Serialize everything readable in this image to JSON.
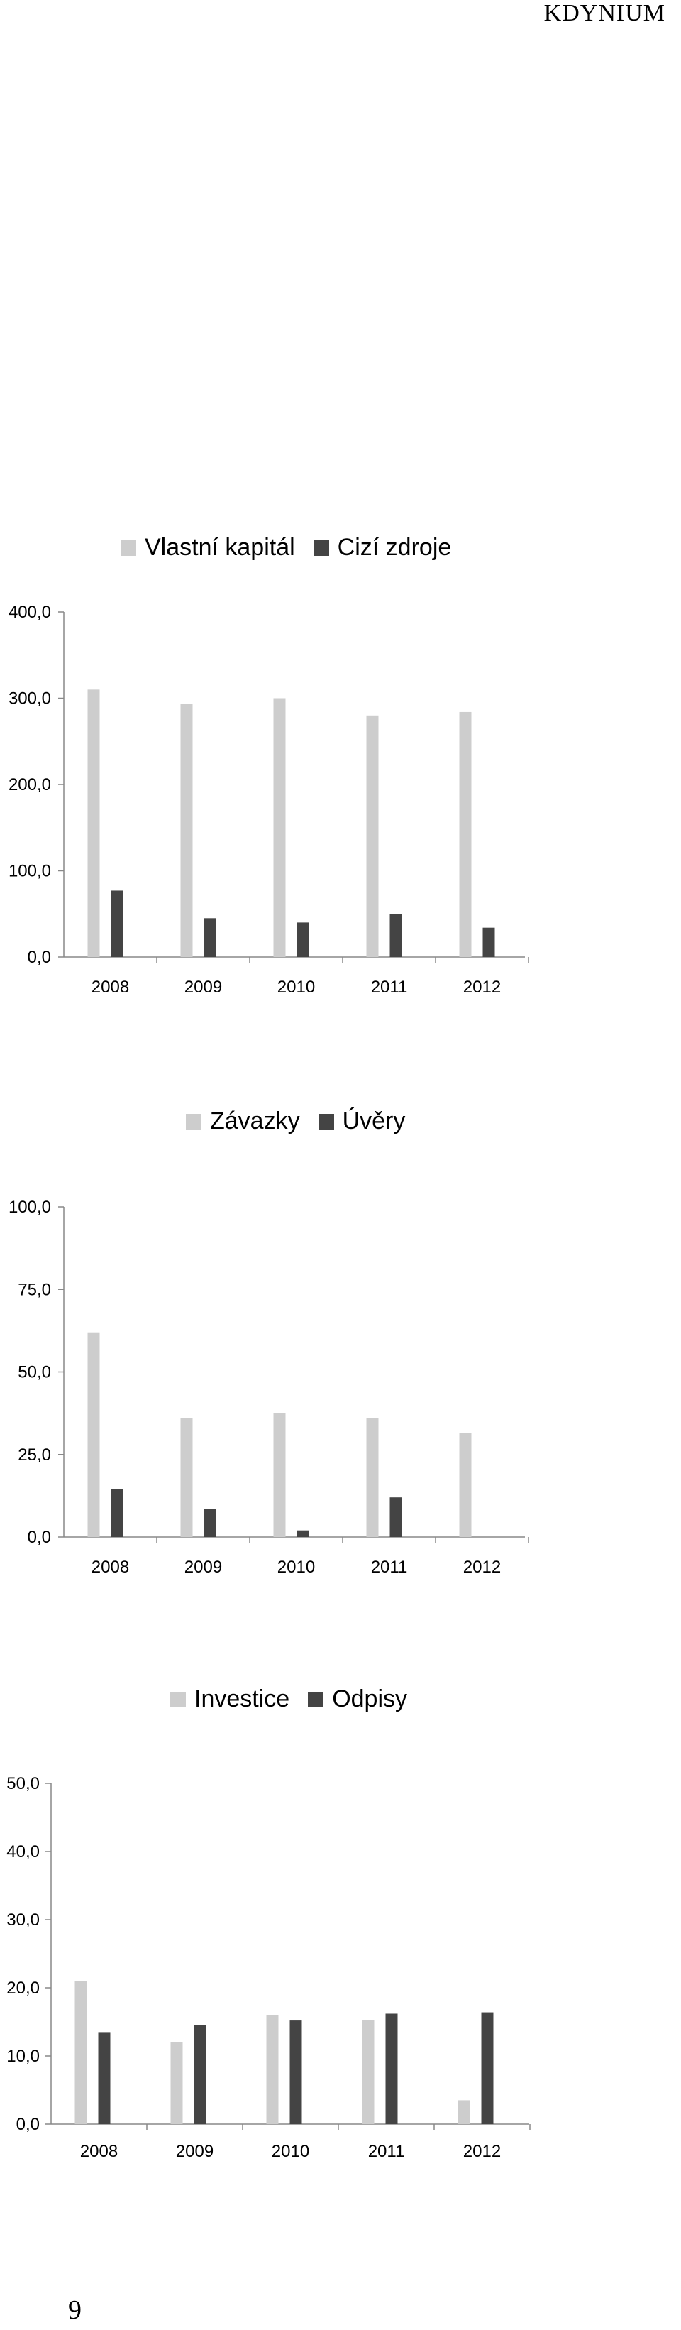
{
  "header": {
    "brand": "KDYNIUM"
  },
  "page_number": "9",
  "colors": {
    "light": "#cdcdcd",
    "dark": "#444444",
    "axis": "#888888"
  },
  "chart_data": [
    {
      "type": "bar",
      "categories": [
        "2008",
        "2009",
        "2010",
        "2011",
        "2012"
      ],
      "series": [
        {
          "name": "Vlastní kapitál",
          "values": [
            310,
            293,
            300,
            280,
            284
          ]
        },
        {
          "name": "Cizí zdroje",
          "values": [
            77,
            45,
            40,
            50,
            34
          ]
        }
      ],
      "ylim": [
        0,
        400
      ],
      "yticks": [
        "0,0",
        "100,0",
        "200,0",
        "300,0",
        "400,0"
      ],
      "legend": "top"
    },
    {
      "type": "bar",
      "categories": [
        "2008",
        "2009",
        "2010",
        "2011",
        "2012"
      ],
      "series": [
        {
          "name": "Závazky",
          "values": [
            62,
            36,
            37.5,
            36,
            31.5
          ]
        },
        {
          "name": "Úvěry",
          "values": [
            14.5,
            8.5,
            2,
            12,
            0
          ]
        }
      ],
      "ylim": [
        0,
        100
      ],
      "yticks": [
        "0,0",
        "25,0",
        "50,0",
        "75,0",
        "100,0"
      ],
      "legend": "top"
    },
    {
      "type": "bar",
      "categories": [
        "2008",
        "2009",
        "2010",
        "2011",
        "2012"
      ],
      "series": [
        {
          "name": "Investice",
          "values": [
            21,
            12,
            16,
            15.3,
            3.5
          ]
        },
        {
          "name": "Odpisy",
          "values": [
            13.5,
            14.5,
            15.2,
            16.2,
            16.4
          ]
        }
      ],
      "ylim": [
        0,
        50
      ],
      "yticks": [
        "0,0",
        "10,0",
        "20,0",
        "30,0",
        "40,0",
        "50,0"
      ],
      "legend": "top"
    }
  ]
}
